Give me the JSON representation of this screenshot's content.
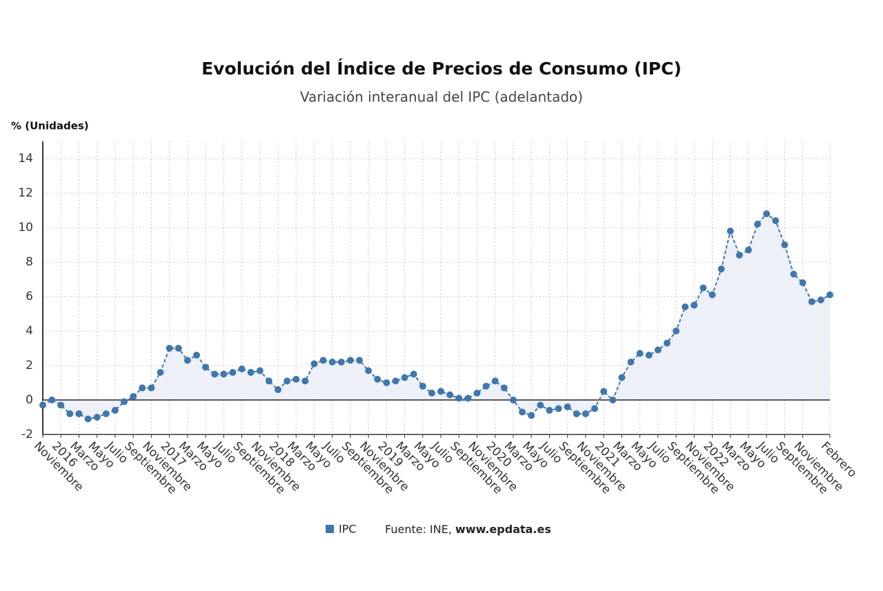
{
  "chart_data": {
    "type": "line",
    "title": "Evolución del Índice de Precios de Consumo (IPC)",
    "subtitle": "Variación interanual del IPC (adelantado)",
    "y_label": "% (Unidades)",
    "source_label": "Fuente: INE,",
    "source_link": "www.epdata.es",
    "categories": [
      "Noviembre",
      null,
      "2016",
      null,
      "Marzo",
      null,
      "Mayo",
      null,
      "Julio",
      null,
      "Septiembre",
      null,
      "Noviembre",
      null,
      "2017",
      null,
      "Marzo",
      null,
      "Mayo",
      null,
      "Julio",
      null,
      "Septiembre",
      null,
      "Noviembre",
      null,
      "2018",
      null,
      "Marzo",
      null,
      "Mayo",
      null,
      "Julio",
      null,
      "Septiembre",
      null,
      "Noviembre",
      null,
      "2019",
      null,
      "Marzo",
      null,
      "Mayo",
      null,
      "Julio",
      null,
      "Septiembre",
      null,
      "Noviembre",
      null,
      "2020",
      null,
      "Marzo",
      null,
      "Mayo",
      null,
      "Julio",
      null,
      "Septiembre",
      null,
      "Noviembre",
      null,
      "2021",
      null,
      "Marzo",
      null,
      "Mayo",
      null,
      "Julio",
      null,
      "Septiembre",
      null,
      "Noviembre",
      null,
      "2022",
      null,
      "Marzo",
      null,
      "Mayo",
      null,
      "Julio",
      null,
      "Septiembre",
      null,
      "Noviembre",
      null,
      null,
      "Febrero"
    ],
    "series": [
      {
        "name": "IPC",
        "color": "#3f77ac",
        "area_color": "#eef0f8",
        "values": [
          -0.3,
          0.0,
          -0.3,
          -0.8,
          -0.8,
          -1.1,
          -1.0,
          -0.8,
          -0.6,
          -0.1,
          0.2,
          0.7,
          0.7,
          1.6,
          3.0,
          3.0,
          2.3,
          2.6,
          1.9,
          1.5,
          1.5,
          1.6,
          1.8,
          1.6,
          1.7,
          1.1,
          0.6,
          1.1,
          1.2,
          1.1,
          2.1,
          2.3,
          2.2,
          2.2,
          2.3,
          2.3,
          1.7,
          1.2,
          1.0,
          1.1,
          1.3,
          1.5,
          0.8,
          0.4,
          0.5,
          0.3,
          0.1,
          0.1,
          0.4,
          0.8,
          1.1,
          0.7,
          0.0,
          -0.7,
          -0.9,
          -0.3,
          -0.6,
          -0.5,
          -0.4,
          -0.8,
          -0.8,
          -0.5,
          0.5,
          0.0,
          1.3,
          2.2,
          2.7,
          2.6,
          2.9,
          3.3,
          4.0,
          5.4,
          5.5,
          6.5,
          6.1,
          7.6,
          9.8,
          8.4,
          8.7,
          10.2,
          10.8,
          10.4,
          9.0,
          7.3,
          6.8,
          5.7,
          5.8,
          6.1
        ]
      }
    ],
    "ylim": [
      -2,
      15
    ],
    "yticks": [
      -2,
      0,
      2,
      4,
      6,
      8,
      10,
      12,
      14
    ],
    "grid": true
  }
}
